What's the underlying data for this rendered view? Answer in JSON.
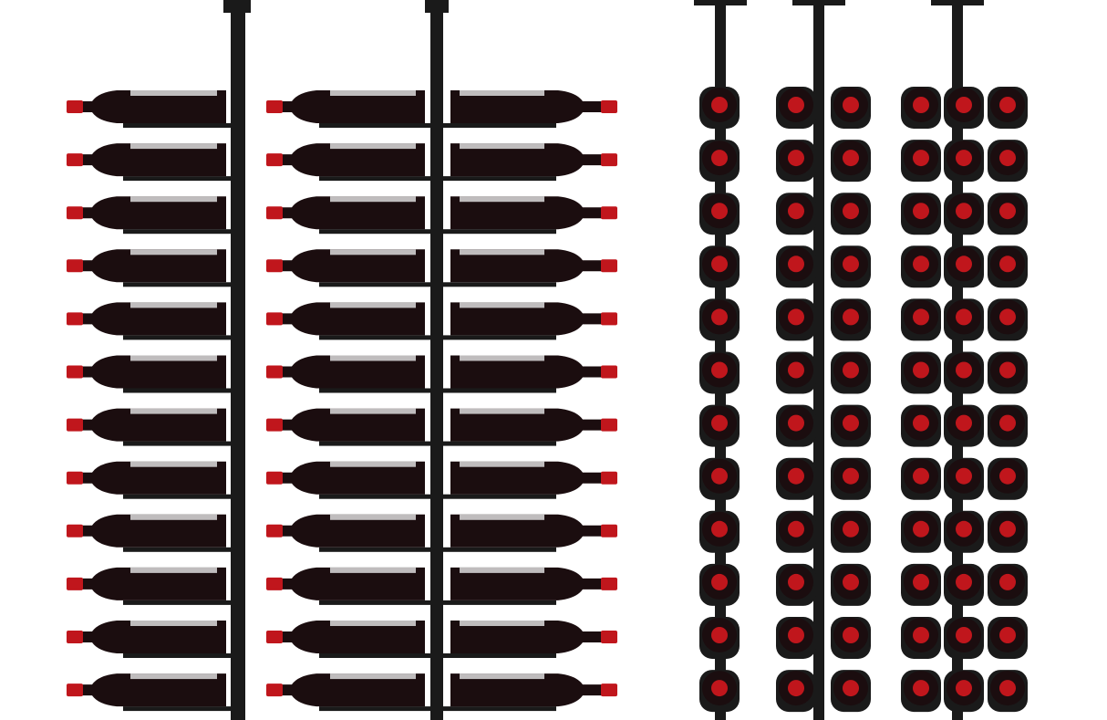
{
  "scene": {
    "rows_per_rack": 12,
    "side_view_racks": [
      {
        "bottle_sides": [
          "left"
        ]
      },
      {
        "bottle_sides": [
          "left",
          "right"
        ]
      }
    ],
    "front_view_racks": [
      {
        "bottles_per_row": 1
      },
      {
        "bottles_per_row": 2
      },
      {
        "bottles_per_row": 3
      }
    ]
  },
  "colors": {
    "background": "#ffffff",
    "rack_metal": "#1a1a1a",
    "bottle_glass": "#1b0d0f",
    "capsule": "#c0161c",
    "label": "#e8e8e8"
  }
}
